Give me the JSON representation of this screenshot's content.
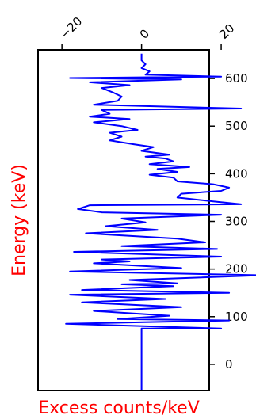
{
  "chart_data": {
    "type": "line",
    "orientation": "vertical",
    "xlabel": "Excess counts/keV",
    "ylabel": "Energy (keV)",
    "label_color": "#ff0000",
    "line_color": "#0000ff",
    "xlim": [
      -26,
      17
    ],
    "ylim": [
      -55,
      660
    ],
    "xticks": [
      -20,
      0,
      20
    ],
    "xtick_labels": [
      "−20",
      "0",
      "20"
    ],
    "xticks_position": "top",
    "yticks": [
      0,
      100,
      200,
      300,
      400,
      500,
      600
    ],
    "yticks_position": "right",
    "grid": false,
    "series": [
      {
        "points": [
          [
            0,
            -55
          ],
          [
            0,
            75
          ],
          [
            20,
            75
          ],
          [
            -19,
            85
          ],
          [
            22,
            92
          ],
          [
            -6,
            95
          ],
          [
            7,
            102
          ],
          [
            -12,
            112
          ],
          [
            10,
            120
          ],
          [
            -15,
            130
          ],
          [
            6,
            137
          ],
          [
            -18,
            146
          ],
          [
            22,
            150
          ],
          [
            -15,
            156
          ],
          [
            8,
            164
          ],
          [
            -5,
            168
          ],
          [
            9,
            170
          ],
          [
            -3,
            177
          ],
          [
            30,
            187
          ],
          [
            -18,
            195
          ],
          [
            10,
            202
          ],
          [
            -12,
            212
          ],
          [
            -3,
            216
          ],
          [
            -10,
            220
          ],
          [
            20,
            226
          ],
          [
            -17,
            236
          ],
          [
            19,
            242
          ],
          [
            -5,
            248
          ],
          [
            16,
            256
          ],
          [
            9,
            264
          ],
          [
            -14,
            275
          ],
          [
            4,
            282
          ],
          [
            -9,
            290
          ],
          [
            1,
            298
          ],
          [
            -5,
            306
          ],
          [
            20,
            314
          ],
          [
            -10,
            319
          ],
          [
            -16,
            326
          ],
          [
            -13,
            334
          ],
          [
            25,
            336
          ],
          [
            18,
            342
          ],
          [
            9,
            350
          ],
          [
            10,
            358
          ],
          [
            20,
            364
          ],
          [
            22,
            371
          ],
          [
            18,
            378
          ],
          [
            9,
            384
          ],
          [
            8,
            392
          ],
          [
            2,
            398
          ],
          [
            9,
            404
          ],
          [
            4,
            410
          ],
          [
            12,
            414
          ],
          [
            2,
            420
          ],
          [
            8,
            426
          ],
          [
            6,
            432
          ],
          [
            1,
            436
          ],
          [
            7,
            440
          ],
          [
            0,
            448
          ],
          [
            3,
            456
          ],
          [
            -2,
            462
          ],
          [
            -8,
            470
          ],
          [
            -5,
            478
          ],
          [
            -8,
            486
          ],
          [
            -1,
            492
          ],
          [
            -5,
            500
          ],
          [
            -12,
            508
          ],
          [
            -3,
            515
          ],
          [
            -13,
            520
          ],
          [
            -8,
            526
          ],
          [
            -10,
            534
          ],
          [
            25,
            537
          ],
          [
            -12,
            545
          ],
          [
            -6,
            553
          ],
          [
            -5,
            562
          ],
          [
            -7,
            570
          ],
          [
            -10,
            580
          ],
          [
            -3,
            586
          ],
          [
            -13,
            592
          ],
          [
            10,
            598
          ],
          [
            -18,
            601
          ],
          [
            20,
            604
          ],
          [
            1,
            608
          ],
          [
            2,
            615
          ],
          [
            0,
            622
          ],
          [
            1,
            630
          ],
          [
            0,
            638
          ],
          [
            0,
            648
          ],
          [
            0,
            652
          ]
        ]
      }
    ]
  }
}
